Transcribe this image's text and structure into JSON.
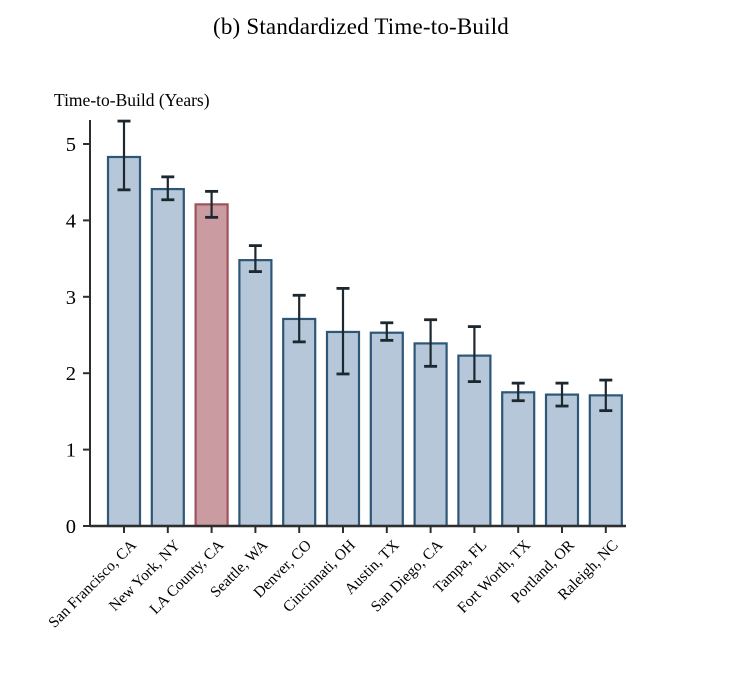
{
  "page": {
    "background": "#ffffff"
  },
  "chart_data": {
    "type": "bar",
    "title": "(b) Standardized Time-to-Build",
    "ylabel": "Time-to-Build (Years)",
    "xlabel": "",
    "categories": [
      "San Francisco, CA",
      "New York, NY",
      "LA County, CA",
      "Seattle, WA",
      "Denver, CO",
      "Cincinnati, OH",
      "Austin, TX",
      "San Diego, CA",
      "Tampa, FL",
      "Fort Worth, TX",
      "Portland, OR",
      "Raleigh, NC"
    ],
    "values": [
      4.83,
      4.41,
      4.21,
      3.48,
      2.71,
      2.54,
      2.53,
      2.39,
      2.23,
      1.75,
      1.72,
      1.71
    ],
    "ci_low": [
      4.4,
      4.27,
      4.04,
      3.33,
      2.41,
      1.99,
      2.43,
      2.09,
      1.89,
      1.64,
      1.57,
      1.51
    ],
    "ci_high": [
      5.3,
      4.57,
      4.38,
      3.67,
      3.02,
      3.11,
      2.66,
      2.7,
      2.61,
      1.87,
      1.87,
      1.91
    ],
    "highlight_category": "LA County, CA",
    "highlight_index": 2,
    "ylim": [
      0,
      5.3
    ],
    "yticks": [
      0,
      1,
      2,
      3,
      4,
      5
    ],
    "grid": false,
    "legend": "none",
    "error_bars": true,
    "x_label_rotation_deg": 45,
    "colors": {
      "bar_fill": "#b5c7d8",
      "bar_stroke": "#2e5677",
      "highlight_fill": "#ca9ba1",
      "highlight_stroke": "#9e535c",
      "errorbar": "#1c2730",
      "axis": "#2e2e2e",
      "text": "#000000"
    }
  }
}
